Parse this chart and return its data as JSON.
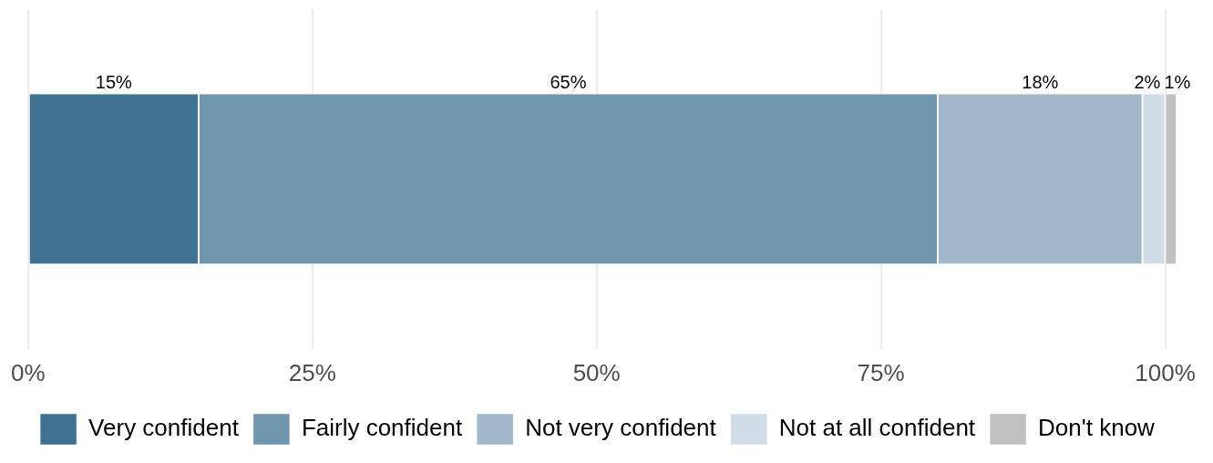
{
  "chart_data": {
    "type": "bar",
    "orientation": "horizontal",
    "stacked": true,
    "categories": [
      null
    ],
    "series": [
      {
        "name": "Very confident",
        "color": "#3f7190",
        "values": [
          15
        ],
        "value_labels": [
          "15%"
        ]
      },
      {
        "name": "Fairly confident",
        "color": "#7096ae",
        "values": [
          65
        ],
        "value_labels": [
          "65%"
        ]
      },
      {
        "name": "Not very confident",
        "color": "#a2b8c8",
        "values": [
          18
        ],
        "value_labels": [
          "18%"
        ]
      },
      {
        "name": "Not at all confident",
        "color": "#d0dde6",
        "values": [
          2
        ],
        "value_labels": [
          "2%"
        ]
      },
      {
        "name": "Don't know",
        "color": "#c0c0c0",
        "values": [
          1
        ],
        "value_labels": [
          "1%"
        ]
      }
    ],
    "xlim": [
      0,
      101
    ],
    "xticks": [
      {
        "value": 0,
        "label": "0%"
      },
      {
        "value": 25,
        "label": "25%"
      },
      {
        "value": 50,
        "label": "50%"
      },
      {
        "value": 75,
        "label": "75%"
      },
      {
        "value": 100,
        "label": "100%"
      }
    ],
    "grid": "x",
    "legend": "bottom",
    "tick_labels": "x"
  }
}
